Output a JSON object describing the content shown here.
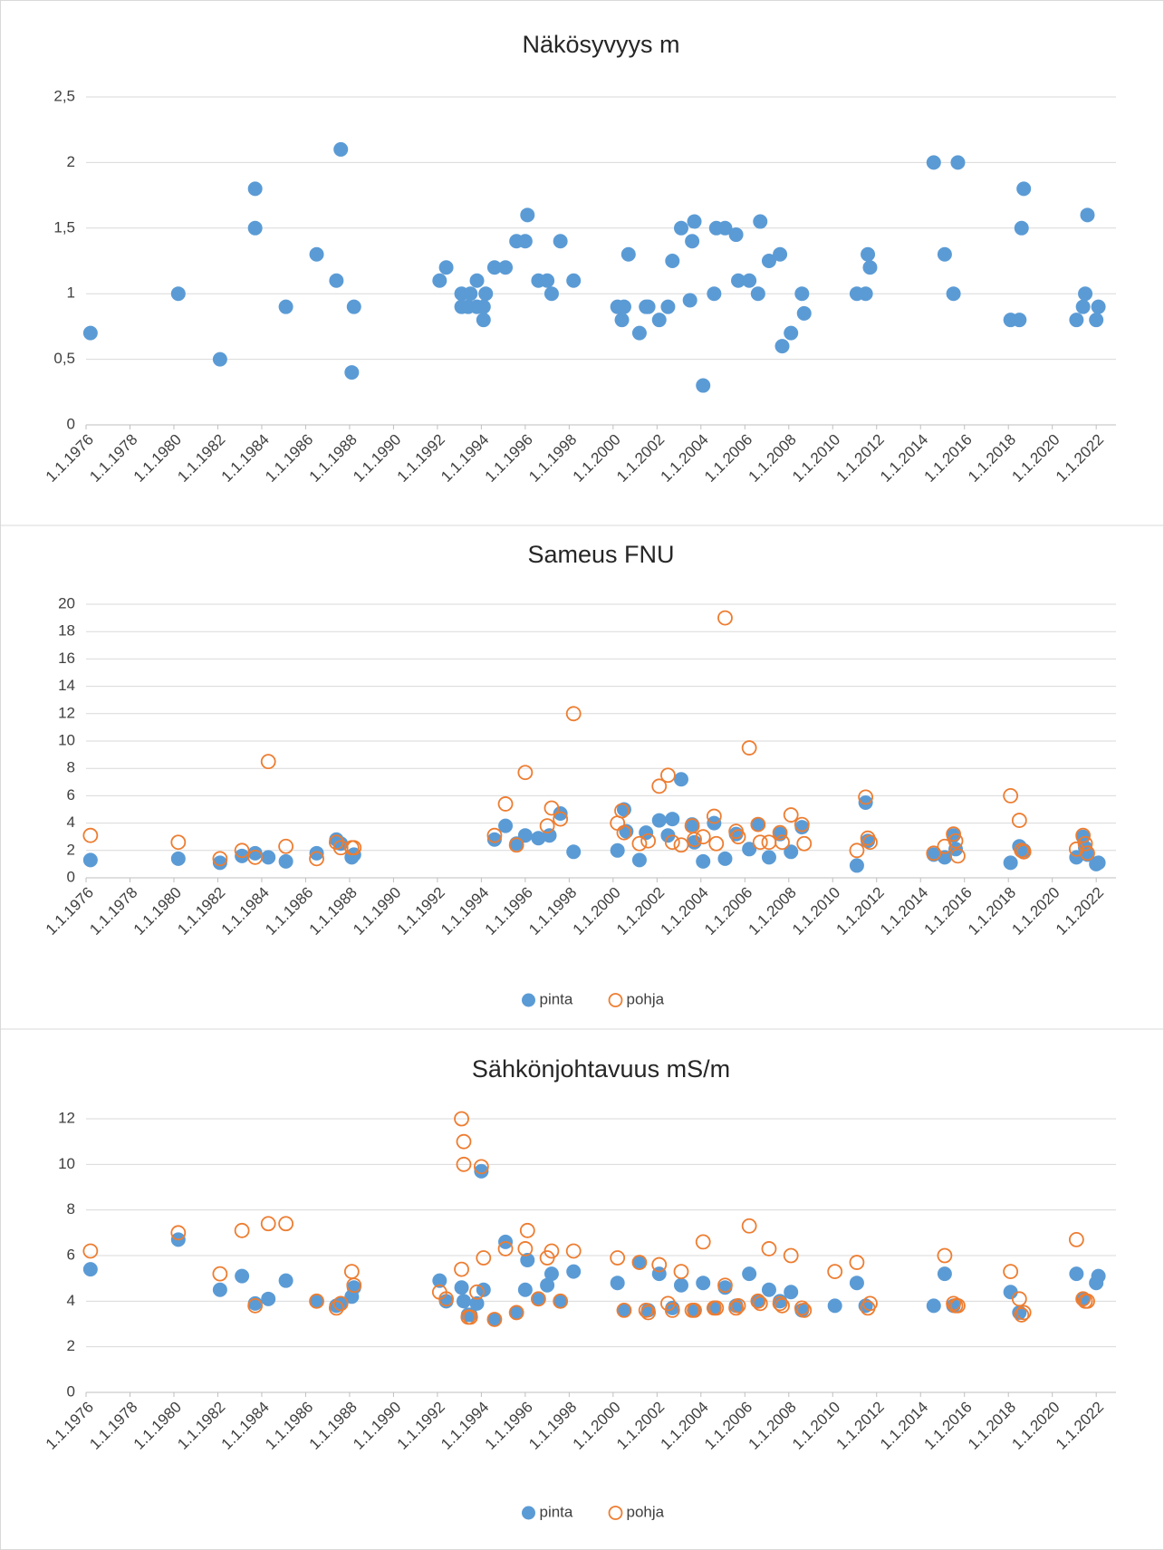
{
  "chart_data": [
    {
      "type": "scatter",
      "title": "Näkösyvyys m",
      "color": "#5b9bd5",
      "marker": "filled",
      "x": [
        1976.2,
        1980.2,
        1982.1,
        1983.7,
        1983.7,
        1985.1,
        1986.5,
        1987.4,
        1987.6,
        1988.1,
        1988.2,
        1992.1,
        1992.4,
        1993.1,
        1993.1,
        1993.4,
        1993.5,
        1993.8,
        1993.8,
        1994.1,
        1994.2,
        1994.1,
        1994.6,
        1995.1,
        1995.6,
        1996.0,
        1996.1,
        1996.6,
        1997.0,
        1997.2,
        1997.6,
        1998.2,
        2000.2,
        2000.4,
        2000.5,
        2000.7,
        2001.2,
        2001.5,
        2001.6,
        2002.1,
        2002.5,
        2002.7,
        2003.1,
        2003.5,
        2003.6,
        2003.7,
        2004.1,
        2004.6,
        2004.7,
        2005.1,
        2005.6,
        2005.7,
        2006.2,
        2006.6,
        2006.7,
        2007.1,
        2007.6,
        2007.7,
        2008.1,
        2008.6,
        2008.7,
        2011.1,
        2011.5,
        2011.6,
        2011.7,
        2014.6,
        2015.1,
        2015.5,
        2015.7,
        2018.1,
        2018.5,
        2018.6,
        2018.7,
        2021.1,
        2021.4,
        2021.5,
        2021.6,
        2022.0,
        2022.1
      ],
      "values": [
        0.7,
        1,
        0.5,
        1.8,
        1.5,
        0.9,
        1.3,
        1.1,
        2.1,
        0.4,
        0.9,
        1.1,
        1.2,
        1,
        0.9,
        0.9,
        1,
        1.1,
        0.9,
        0.8,
        1,
        0.9,
        1.2,
        1.2,
        1.4,
        1.4,
        1.6,
        1.1,
        1.1,
        1,
        1.4,
        1.1,
        0.9,
        0.8,
        0.9,
        1.3,
        0.7,
        0.9,
        0.9,
        0.8,
        0.9,
        1.25,
        1.5,
        0.95,
        1.4,
        1.55,
        0.3,
        1,
        1.5,
        1.5,
        1.45,
        1.1,
        1.1,
        1,
        1.55,
        1.25,
        1.3,
        0.6,
        0.7,
        1,
        0.85,
        1,
        1,
        1.3,
        1.2,
        2,
        1.3,
        1,
        2,
        0.8,
        0.8,
        1.5,
        1.8,
        0.8,
        0.9,
        1,
        1.6,
        0.8,
        0.9
      ],
      "xlim": [
        1976,
        2022.9
      ],
      "xticks": [
        {
          "value": 1976,
          "label": "1.1.1976"
        },
        {
          "value": 1978,
          "label": "1.1.1978"
        },
        {
          "value": 1980,
          "label": "1.1.1980"
        },
        {
          "value": 1982,
          "label": "1.1.1982"
        },
        {
          "value": 1984,
          "label": "1.1.1984"
        },
        {
          "value": 1986,
          "label": "1.1.1986"
        },
        {
          "value": 1988,
          "label": "1.1.1988"
        },
        {
          "value": 1990,
          "label": "1.1.1990"
        },
        {
          "value": 1992,
          "label": "1.1.1992"
        },
        {
          "value": 1994,
          "label": "1.1.1994"
        },
        {
          "value": 1996,
          "label": "1.1.1996"
        },
        {
          "value": 1998,
          "label": "1.1.1998"
        },
        {
          "value": 2000,
          "label": "1.1.2000"
        },
        {
          "value": 2002,
          "label": "1.1.2002"
        },
        {
          "value": 2004,
          "label": "1.1.2004"
        },
        {
          "value": 2006,
          "label": "1.1.2006"
        },
        {
          "value": 2008,
          "label": "1.1.2008"
        },
        {
          "value": 2010,
          "label": "1.1.2010"
        },
        {
          "value": 2012,
          "label": "1.1.2012"
        },
        {
          "value": 2014,
          "label": "1.1.2014"
        },
        {
          "value": 2016,
          "label": "1.1.2016"
        },
        {
          "value": 2018,
          "label": "1.1.2018"
        },
        {
          "value": 2020,
          "label": "1.1.2020"
        },
        {
          "value": 2022,
          "label": "1.1.2022"
        }
      ],
      "ylim": [
        0,
        2.5
      ],
      "yticks": [
        0,
        {
          "value": 0.5,
          "label": "0,5"
        },
        1,
        {
          "value": 1.5,
          "label": "1,5"
        },
        2,
        {
          "value": 2.5,
          "label": "2,5"
        }
      ],
      "grid": true
    },
    {
      "type": "scatter",
      "title": "Sameus FNU",
      "legend": "bottom",
      "series": [
        {
          "name": "pinta",
          "color": "#5b9bd5",
          "marker": "filled",
          "x": [
            1976.2,
            1980.2,
            1982.1,
            1983.1,
            1983.7,
            1984.3,
            1985.1,
            1986.5,
            1987.4,
            1987.6,
            1988.1,
            1988.2,
            1994.6,
            1995.1,
            1995.6,
            1996.0,
            1996.6,
            1997.1,
            1997.6,
            1998.2,
            2000.2,
            2000.5,
            2000.6,
            2001.2,
            2001.5,
            2002.1,
            2002.5,
            2002.7,
            2003.1,
            2003.6,
            2003.7,
            2004.1,
            2004.6,
            2005.1,
            2005.6,
            2006.2,
            2006.6,
            2007.1,
            2007.6,
            2008.1,
            2008.6,
            2011.1,
            2011.5,
            2011.6,
            2014.6,
            2015.1,
            2015.5,
            2015.6,
            2018.1,
            2018.5,
            2018.7,
            2021.1,
            2021.4,
            2021.5,
            2021.6,
            2022.0,
            2022.1
          ],
          "values": [
            1.3,
            1.4,
            1.1,
            1.6,
            1.8,
            1.5,
            1.2,
            1.8,
            2.8,
            2.5,
            1.5,
            1.7,
            2.8,
            3.8,
            2.5,
            3.1,
            2.9,
            3.1,
            4.7,
            1.9,
            2,
            5,
            3.4,
            1.3,
            3.3,
            4.2,
            3.1,
            4.3,
            7.2,
            3.9,
            2.6,
            1.2,
            4,
            1.4,
            3.2,
            2.1,
            3.9,
            1.5,
            3.2,
            1.9,
            3.7,
            0.9,
            5.5,
            2.7,
            1.7,
            1.5,
            3.1,
            2.1,
            1.1,
            2.3,
            2,
            1.5,
            3,
            2.2,
            1.7,
            1,
            1.1
          ]
        },
        {
          "name": "pohja",
          "color": "#ed7d31",
          "marker": "hollow",
          "x": [
            1976.2,
            1980.2,
            1982.1,
            1983.1,
            1983.7,
            1984.3,
            1985.1,
            1986.5,
            1987.4,
            1987.6,
            1988.1,
            1988.2,
            1994.6,
            1995.1,
            1995.6,
            1996.0,
            1997.0,
            1997.2,
            1997.6,
            1998.2,
            2000.2,
            2000.4,
            2000.5,
            2001.2,
            2001.6,
            2002.1,
            2002.5,
            2002.7,
            2003.1,
            2003.6,
            2003.7,
            2004.1,
            2004.6,
            2004.7,
            2005.1,
            2005.6,
            2005.7,
            2006.2,
            2006.6,
            2006.7,
            2007.1,
            2007.6,
            2007.7,
            2008.1,
            2008.6,
            2008.7,
            2011.1,
            2011.5,
            2011.6,
            2011.7,
            2014.6,
            2015.1,
            2015.5,
            2015.6,
            2015.7,
            2018.1,
            2018.5,
            2018.6,
            2018.7,
            2021.1,
            2021.4,
            2021.5,
            2021.6
          ],
          "values": [
            3.1,
            2.6,
            1.4,
            2,
            1.5,
            8.5,
            2.3,
            1.4,
            2.6,
            2.2,
            2.2,
            2.2,
            3.1,
            5.4,
            2.4,
            7.7,
            3.8,
            5.1,
            4.3,
            12,
            4,
            4.9,
            3.3,
            2.5,
            2.7,
            6.7,
            7.5,
            2.6,
            2.4,
            3.8,
            2.8,
            3,
            4.5,
            2.5,
            19,
            3.4,
            3,
            9.5,
            3.9,
            2.6,
            2.6,
            3.3,
            2.6,
            4.6,
            3.9,
            2.5,
            2,
            5.9,
            2.9,
            2.6,
            1.8,
            2.3,
            3.2,
            2.7,
            1.6,
            6,
            4.2,
            2,
            1.9,
            2.1,
            3.1,
            2.5,
            1.8
          ]
        }
      ],
      "xlim": [
        1976,
        2022.9
      ],
      "xticks": [
        {
          "value": 1976,
          "label": "1.1.1976"
        },
        {
          "value": 1978,
          "label": "1.1.1978"
        },
        {
          "value": 1980,
          "label": "1.1.1980"
        },
        {
          "value": 1982,
          "label": "1.1.1982"
        },
        {
          "value": 1984,
          "label": "1.1.1984"
        },
        {
          "value": 1986,
          "label": "1.1.1986"
        },
        {
          "value": 1988,
          "label": "1.1.1988"
        },
        {
          "value": 1990,
          "label": "1.1.1990"
        },
        {
          "value": 1992,
          "label": "1.1.1992"
        },
        {
          "value": 1994,
          "label": "1.1.1994"
        },
        {
          "value": 1996,
          "label": "1.1.1996"
        },
        {
          "value": 1998,
          "label": "1.1.1998"
        },
        {
          "value": 2000,
          "label": "1.1.2000"
        },
        {
          "value": 2002,
          "label": "1.1.2002"
        },
        {
          "value": 2004,
          "label": "1.1.2004"
        },
        {
          "value": 2006,
          "label": "1.1.2006"
        },
        {
          "value": 2008,
          "label": "1.1.2008"
        },
        {
          "value": 2010,
          "label": "1.1.2010"
        },
        {
          "value": 2012,
          "label": "1.1.2012"
        },
        {
          "value": 2014,
          "label": "1.1.2014"
        },
        {
          "value": 2016,
          "label": "1.1.2016"
        },
        {
          "value": 2018,
          "label": "1.1.2018"
        },
        {
          "value": 2020,
          "label": "1.1.2020"
        },
        {
          "value": 2022,
          "label": "1.1.2022"
        }
      ],
      "ylim": [
        0,
        20
      ],
      "yticks": [
        0,
        2,
        4,
        6,
        8,
        10,
        12,
        14,
        16,
        18,
        20
      ],
      "grid": true
    },
    {
      "type": "scatter",
      "title": "Sähkönjohtavuus mS/m",
      "legend": "bottom",
      "series": [
        {
          "name": "pinta",
          "color": "#5b9bd5",
          "marker": "filled",
          "x": [
            1976.2,
            1980.2,
            1982.1,
            1983.1,
            1983.7,
            1984.3,
            1985.1,
            1986.5,
            1987.4,
            1987.6,
            1988.1,
            1988.2,
            1992.1,
            1992.4,
            1993.1,
            1993.2,
            1993.4,
            1993.5,
            1993.8,
            1994.0,
            1994.1,
            1994.6,
            1995.1,
            1995.6,
            1996.0,
            1996.1,
            1996.6,
            1997.0,
            1997.2,
            1997.6,
            1998.2,
            2000.2,
            2000.5,
            2001.2,
            2001.6,
            2002.1,
            2002.7,
            2003.1,
            2003.7,
            2004.1,
            2004.6,
            2005.1,
            2005.6,
            2006.2,
            2006.6,
            2007.1,
            2007.6,
            2008.1,
            2008.6,
            2010.1,
            2011.1,
            2011.5,
            2014.6,
            2015.1,
            2015.5,
            2018.1,
            2018.5,
            2021.1,
            2021.4,
            2022.0,
            2022.1
          ],
          "values": [
            5.4,
            6.7,
            4.5,
            5.1,
            3.9,
            4.1,
            4.9,
            4,
            3.8,
            3.9,
            4.2,
            4.6,
            4.9,
            4,
            4.6,
            4,
            3.4,
            3.4,
            3.9,
            9.7,
            4.5,
            3.2,
            6.6,
            3.5,
            4.5,
            5.8,
            4.1,
            4.7,
            5.2,
            4,
            5.3,
            4.8,
            3.6,
            5.7,
            3.6,
            5.2,
            3.7,
            4.7,
            3.6,
            4.8,
            3.7,
            4.6,
            3.8,
            5.2,
            4,
            4.5,
            4,
            4.4,
            3.6,
            3.8,
            4.8,
            3.8,
            3.8,
            5.2,
            3.8,
            4.4,
            3.5,
            5.2,
            4.1,
            4.8,
            5.1
          ]
        },
        {
          "name": "pohja",
          "color": "#ed7d31",
          "marker": "hollow",
          "x": [
            1976.2,
            1980.2,
            1982.1,
            1983.1,
            1983.7,
            1984.3,
            1985.1,
            1986.5,
            1987.4,
            1987.6,
            1988.1,
            1988.2,
            1992.1,
            1992.4,
            1993.1,
            1993.1,
            1993.2,
            1993.2,
            1993.4,
            1993.5,
            1993.8,
            1994.0,
            1994.1,
            1994.6,
            1995.1,
            1995.6,
            1996.0,
            1996.1,
            1996.6,
            1997.0,
            1997.2,
            1997.6,
            1998.2,
            2000.2,
            2000.5,
            2001.2,
            2001.5,
            2001.6,
            2002.1,
            2002.5,
            2002.7,
            2003.1,
            2003.6,
            2003.7,
            2004.1,
            2004.6,
            2004.7,
            2005.1,
            2005.6,
            2005.7,
            2006.2,
            2006.6,
            2006.7,
            2007.1,
            2007.6,
            2007.7,
            2008.1,
            2008.6,
            2008.7,
            2010.1,
            2011.1,
            2011.6,
            2011.7,
            2015.1,
            2015.5,
            2015.6,
            2015.7,
            2018.1,
            2018.5,
            2018.6,
            2018.7,
            2021.1,
            2021.4,
            2021.5,
            2021.6
          ],
          "values": [
            6.2,
            7,
            5.2,
            7.1,
            3.8,
            7.4,
            7.4,
            4,
            3.7,
            3.9,
            5.3,
            4.7,
            4.4,
            4.1,
            5.4,
            12,
            11,
            10,
            3.3,
            3.3,
            4.4,
            9.9,
            5.9,
            3.2,
            6.3,
            3.5,
            6.3,
            7.1,
            4.1,
            5.9,
            6.2,
            4,
            6.2,
            5.9,
            3.6,
            5.7,
            3.6,
            3.5,
            5.6,
            3.9,
            3.6,
            5.3,
            3.6,
            3.6,
            6.6,
            3.7,
            3.7,
            4.7,
            3.7,
            3.8,
            7.3,
            4,
            3.9,
            6.3,
            3.9,
            3.8,
            6,
            3.7,
            3.6,
            5.3,
            5.7,
            3.7,
            3.9,
            6,
            3.9,
            3.8,
            3.8,
            5.3,
            4.1,
            3.4,
            3.5,
            6.7,
            4.1,
            4,
            4
          ]
        }
      ],
      "xlim": [
        1976,
        2022.9
      ],
      "xticks": [
        {
          "value": 1976,
          "label": "1.1.1976"
        },
        {
          "value": 1978,
          "label": "1.1.1978"
        },
        {
          "value": 1980,
          "label": "1.1.1980"
        },
        {
          "value": 1982,
          "label": "1.1.1982"
        },
        {
          "value": 1984,
          "label": "1.1.1984"
        },
        {
          "value": 1986,
          "label": "1.1.1986"
        },
        {
          "value": 1988,
          "label": "1.1.1988"
        },
        {
          "value": 1990,
          "label": "1.1.1990"
        },
        {
          "value": 1992,
          "label": "1.1.1992"
        },
        {
          "value": 1994,
          "label": "1.1.1994"
        },
        {
          "value": 1996,
          "label": "1.1.1996"
        },
        {
          "value": 1998,
          "label": "1.1.1998"
        },
        {
          "value": 2000,
          "label": "1.1.2000"
        },
        {
          "value": 2002,
          "label": "1.1.2002"
        },
        {
          "value": 2004,
          "label": "1.1.2004"
        },
        {
          "value": 2006,
          "label": "1.1.2006"
        },
        {
          "value": 2008,
          "label": "1.1.2008"
        },
        {
          "value": 2010,
          "label": "1.1.2010"
        },
        {
          "value": 2012,
          "label": "1.1.2012"
        },
        {
          "value": 2014,
          "label": "1.1.2014"
        },
        {
          "value": 2016,
          "label": "1.1.2016"
        },
        {
          "value": 2018,
          "label": "1.1.2018"
        },
        {
          "value": 2020,
          "label": "1.1.2020"
        },
        {
          "value": 2022,
          "label": "1.1.2022"
        }
      ],
      "ylim": [
        0,
        12
      ],
      "yticks": [
        0,
        2,
        4,
        6,
        8,
        10,
        12
      ],
      "grid": true
    }
  ]
}
